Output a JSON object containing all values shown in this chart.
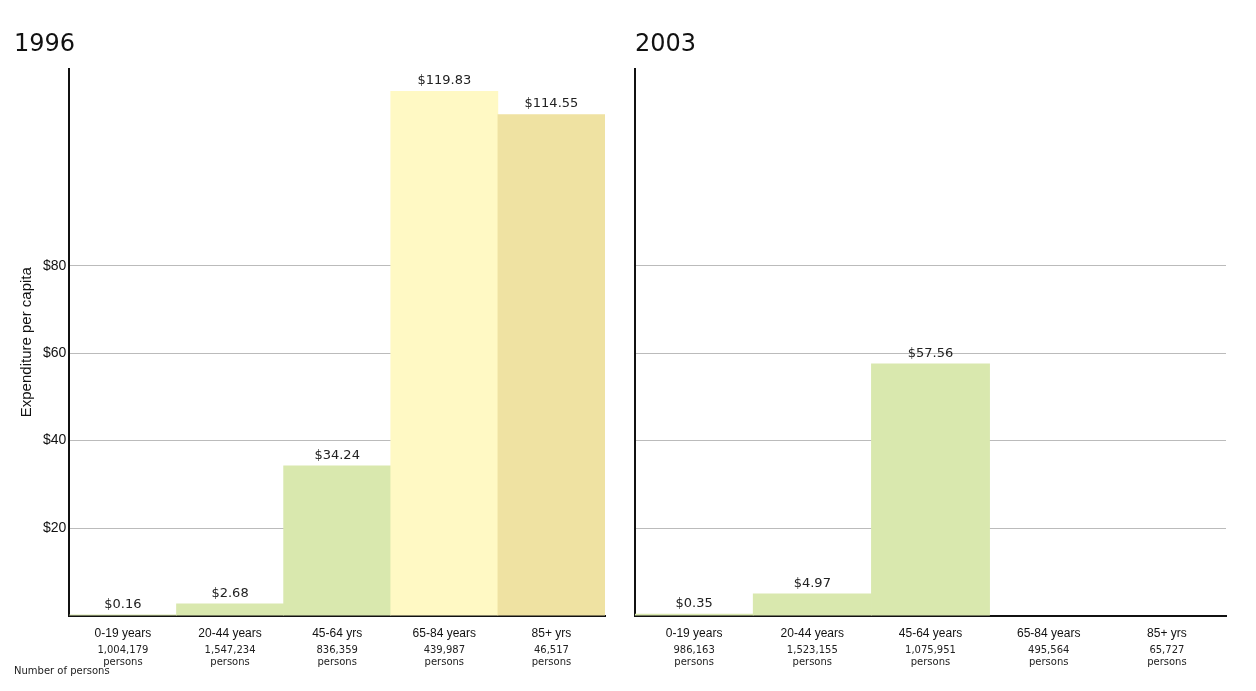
{
  "chart_data": [
    {
      "type": "bar",
      "title": "1996",
      "ylabel": "Expenditure per capita",
      "categories": [
        "0-19 years",
        "20-44 years",
        "45-64 yrs",
        "65-84 years",
        "85+ yrs"
      ],
      "values": [
        0.16,
        2.68,
        34.24,
        119.83,
        114.55
      ],
      "value_labels": [
        "$0.16",
        "$2.68",
        "$34.24",
        "$119.83",
        "$114.55"
      ],
      "colors": [
        "#d9e8ae",
        "#d9e8ae",
        "#d9e8ae",
        "#fff9c4",
        "#efe2a2"
      ],
      "ylim": [
        0,
        125
      ],
      "yticks": [
        {
          "value": 20,
          "label": "$20"
        },
        {
          "value": 40,
          "label": "$40"
        },
        {
          "value": 60,
          "label": "$60"
        },
        {
          "value": 80,
          "label": "$80"
        }
      ],
      "grid": "y",
      "annotations": [
        "1,004,179 persons",
        "1,547,234 persons",
        "836,359 persons",
        "439,987 persons",
        "46,517 persons",
        "Number of persons"
      ]
    },
    {
      "type": "bar",
      "title": "2003",
      "categories": [
        "0-19 years",
        "20-44 years",
        "45-64 years",
        "65-84 years",
        "85+ yrs"
      ],
      "values": [
        0.35,
        4.97,
        57.56,
        null,
        null
      ],
      "value_labels": [
        "$0.35",
        "$4.97",
        "$57.56",
        null,
        null
      ],
      "colors": [
        "#d9e8ae",
        "#d9e8ae",
        "#d9e8ae",
        "#fff9c4",
        "#efe2a2"
      ],
      "ylim": [
        0,
        125
      ],
      "yticks": [
        20,
        40,
        60,
        80
      ],
      "grid": "y",
      "tick_labels": "x",
      "annotations": [
        "986,163 persons",
        "1,523,155 persons",
        "1,075,951 persons",
        "495,564 persons",
        "65,727 persons"
      ]
    }
  ]
}
